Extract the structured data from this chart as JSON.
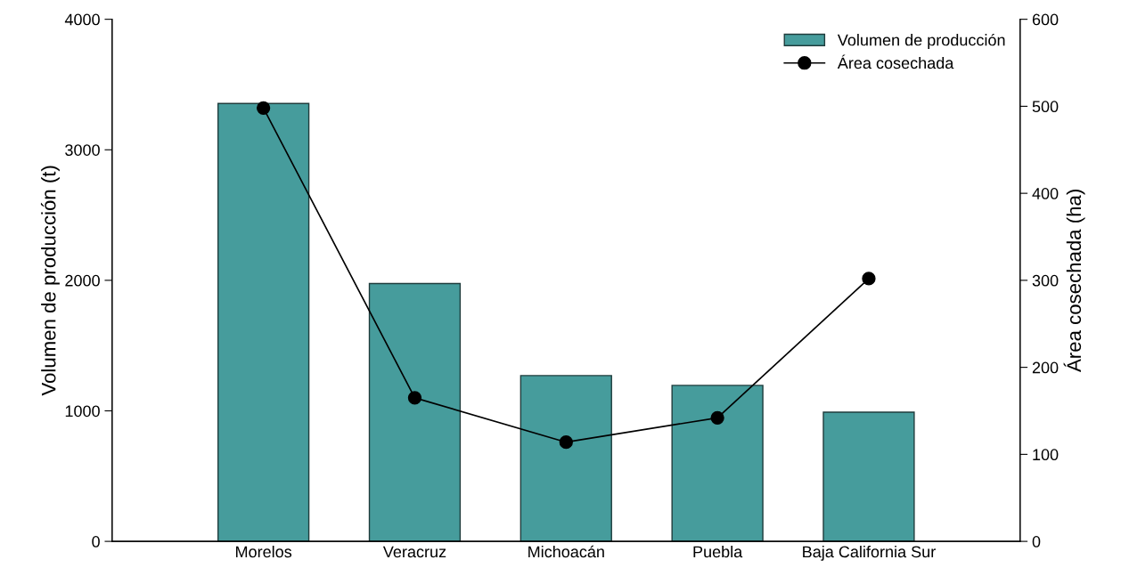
{
  "chart_data": {
    "type": "bar",
    "ylabel": "Volumen de producción (t)",
    "y2label": "Área cosechada (ha)",
    "categories": [
      "Morelos",
      "Veracruz",
      "Michoacán",
      "Puebla",
      "Baja California Sur"
    ],
    "series": [
      {
        "name": "Volumen de producción",
        "color": "#469c9c",
        "values": [
          3355,
          1975,
          1270,
          1195,
          990
        ]
      },
      {
        "name": "Área cosechada",
        "type": "line",
        "axis": "y2",
        "color": "#000000",
        "marker": "circle",
        "values": [
          498,
          165,
          114,
          142,
          302
        ]
      }
    ],
    "ylim": [
      0,
      4000
    ],
    "yticks": [
      0,
      1000,
      2000,
      3000,
      4000
    ],
    "y2lim": [
      0,
      600
    ],
    "y2ticks": [
      0,
      100,
      200,
      300,
      400,
      500,
      600
    ],
    "grid": false,
    "legend": "top right"
  }
}
